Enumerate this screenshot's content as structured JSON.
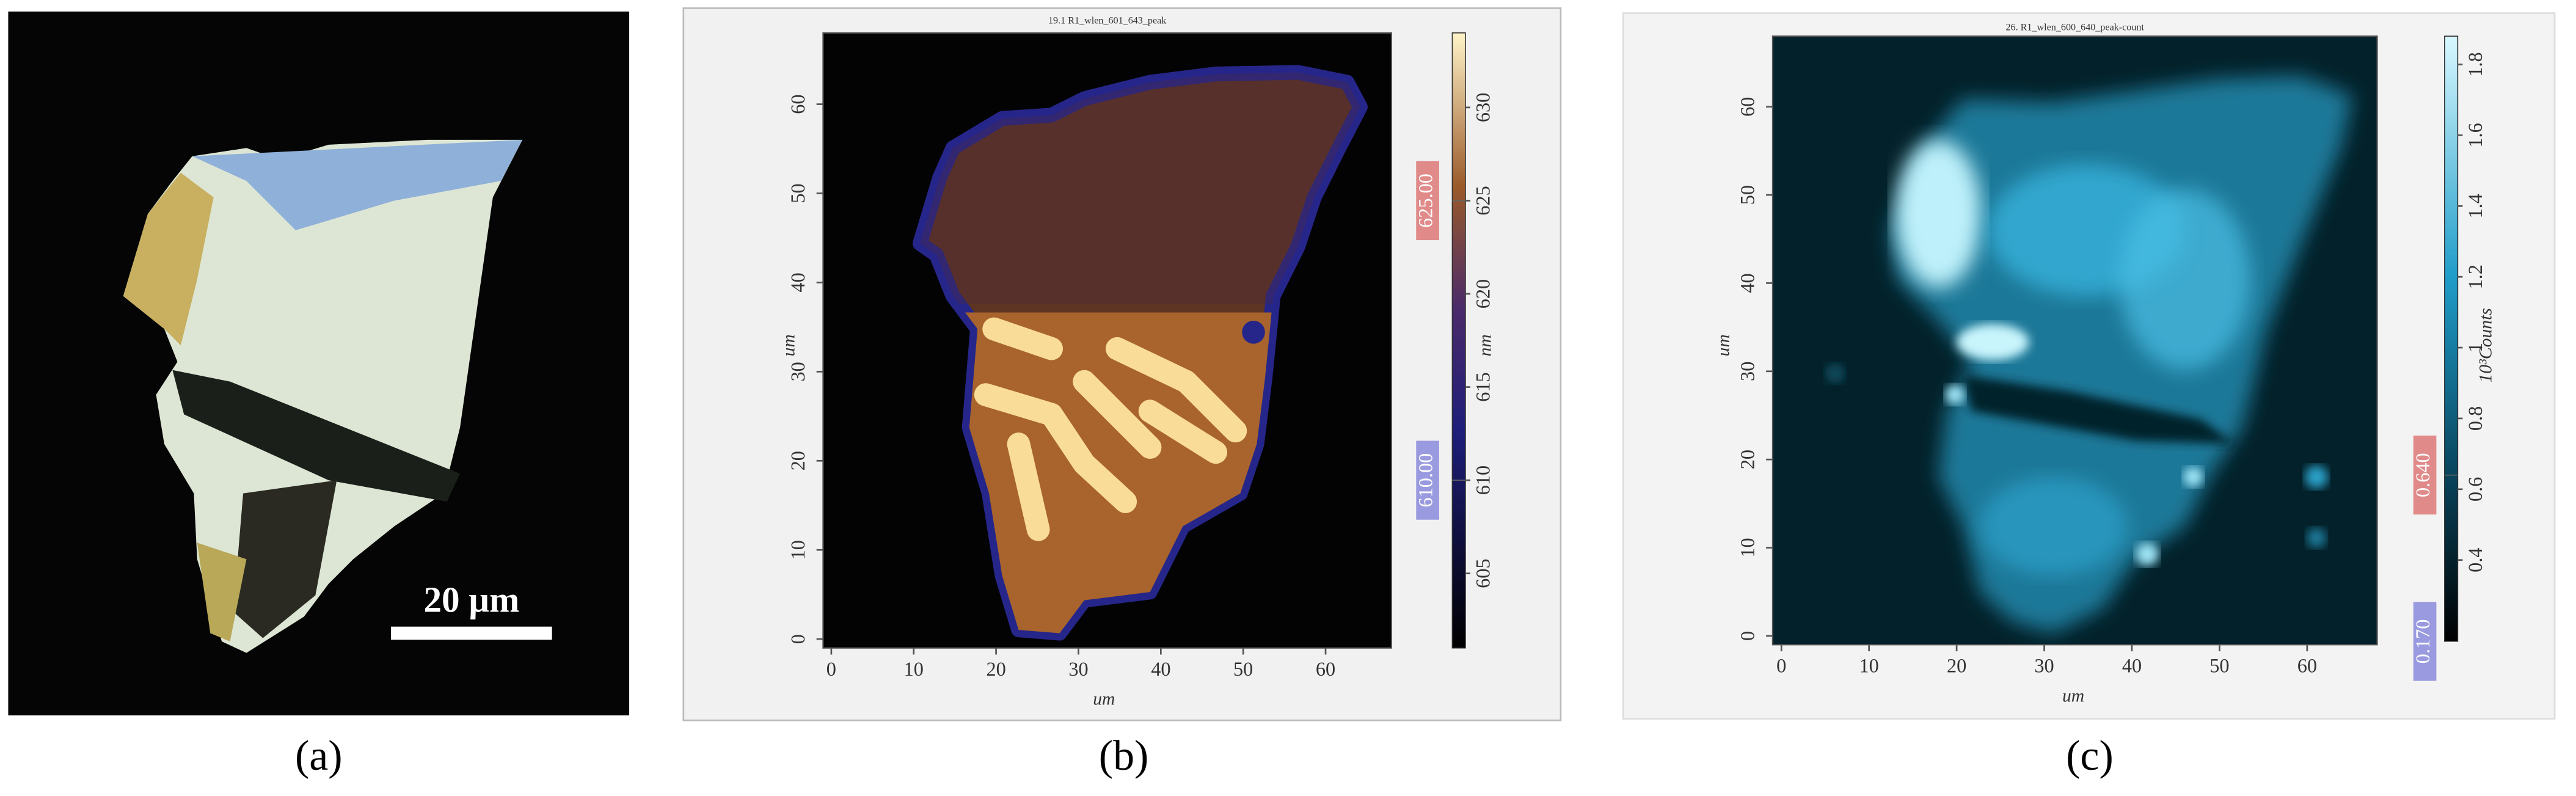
{
  "panels": [
    {
      "label": "(a)",
      "scale_bar": "20 μm"
    },
    {
      "label": "(b)",
      "title": "19.1 R1_wlen_601_643_peak",
      "x_label": "um",
      "y_label": "um",
      "xlim": [
        -1,
        68
      ],
      "ylim": [
        -1,
        68
      ],
      "xticks": [
        0,
        10,
        20,
        30,
        40,
        50,
        60
      ],
      "yticks": [
        0,
        10,
        20,
        30,
        40,
        50,
        60
      ],
      "colorbar": {
        "label": "nm",
        "lim": [
          601,
          634
        ],
        "ticks": [
          605,
          610,
          615,
          620,
          625,
          630
        ],
        "markers": [
          {
            "value": 625,
            "label": "625.00"
          },
          {
            "value": 610,
            "label": "610.00"
          }
        ]
      }
    },
    {
      "label": "(c)",
      "title": "26. R1_wlen_600_640_peak-count",
      "x_label": "um",
      "y_label": "um",
      "xlim": [
        -1,
        68
      ],
      "ylim": [
        -1,
        68
      ],
      "xticks": [
        0,
        10,
        20,
        30,
        40,
        50,
        60
      ],
      "yticks": [
        0,
        10,
        20,
        30,
        40,
        50,
        60
      ],
      "colorbar": {
        "label": "10³Counts",
        "lim": [
          0.17,
          1.88
        ],
        "ticks": [
          0.4,
          0.6,
          0.8,
          1.0,
          1.2,
          1.4,
          1.6,
          1.8
        ],
        "markers": [
          {
            "value": 0.64,
            "label": "0.640"
          },
          {
            "value": 0.17,
            "label": "0.170"
          }
        ]
      }
    }
  ]
}
